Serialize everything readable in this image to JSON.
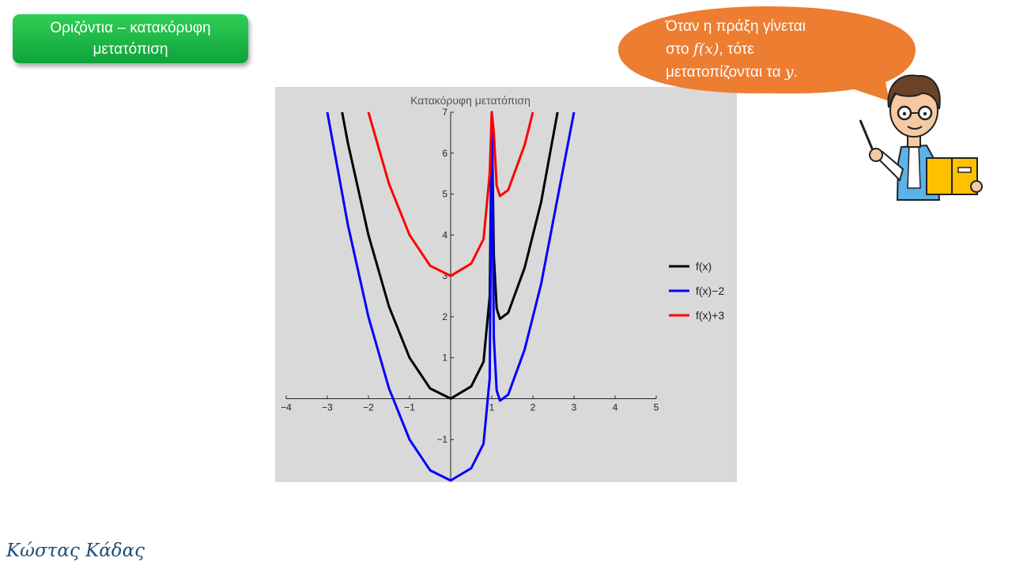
{
  "slide": {
    "title_line1": "Οριζόντια – κατακόρυφη",
    "title_line2": "μετατόπιση",
    "author": "Κώστας Κάδας"
  },
  "bubble": {
    "line1": "Όταν η πράξη γίνεται",
    "line2_pre": "στο ",
    "line2_math": "f(x)",
    "line2_post": ", τότε",
    "line3_pre": "μετατοπίζονται τα ",
    "line3_math": "y",
    "line3_post": "."
  },
  "colors": {
    "title_bg": "#1fba48",
    "bubble_bg": "#ed7d31",
    "panel_bg": "#d9d9d9"
  },
  "chart_data": {
    "type": "line",
    "title": "Κατακόρυφη μετατόπιση",
    "xlim": [
      -4,
      5
    ],
    "ylim": [
      -2,
      7
    ],
    "x_ticks": [
      -4,
      -3,
      -2,
      -1,
      1,
      2,
      3,
      4,
      5
    ],
    "y_ticks": [
      -1,
      1,
      2,
      3,
      4,
      5,
      6,
      7
    ],
    "legend_position": "right",
    "series": [
      {
        "name": "f(x)",
        "color": "#000000",
        "points": [
          [
            -2.64,
            7
          ],
          [
            -2.5,
            6.25
          ],
          [
            -2,
            4
          ],
          [
            -1.5,
            2.25
          ],
          [
            -1,
            1
          ],
          [
            -0.5,
            0.25
          ],
          [
            0,
            0
          ],
          [
            0.5,
            0.3
          ],
          [
            0.8,
            0.9
          ],
          [
            0.95,
            2.5
          ],
          [
            1,
            7
          ],
          [
            1.05,
            3.5
          ],
          [
            1.12,
            2.2
          ],
          [
            1.2,
            1.95
          ],
          [
            1.4,
            2.1
          ],
          [
            1.8,
            3.2
          ],
          [
            2.2,
            4.8
          ],
          [
            2.6,
            7
          ]
        ]
      },
      {
        "name": "f(x)−2",
        "color": "#0000ff",
        "points": [
          [
            -3,
            7
          ],
          [
            -2.5,
            4.25
          ],
          [
            -2,
            2
          ],
          [
            -1.5,
            0.25
          ],
          [
            -1,
            -1
          ],
          [
            -0.5,
            -1.75
          ],
          [
            0,
            -2
          ],
          [
            0.5,
            -1.7
          ],
          [
            0.8,
            -1.1
          ],
          [
            0.95,
            0.5
          ],
          [
            1,
            7
          ],
          [
            1.05,
            1.5
          ],
          [
            1.12,
            0.2
          ],
          [
            1.2,
            -0.05
          ],
          [
            1.4,
            0.1
          ],
          [
            1.8,
            1.2
          ],
          [
            2.2,
            2.8
          ],
          [
            2.6,
            4.9
          ],
          [
            3,
            7
          ]
        ]
      },
      {
        "name": "f(x)+3",
        "color": "#ff0000",
        "points": [
          [
            -2,
            7
          ],
          [
            -1.5,
            5.25
          ],
          [
            -1,
            4
          ],
          [
            -0.5,
            3.25
          ],
          [
            0,
            3
          ],
          [
            0.5,
            3.3
          ],
          [
            0.8,
            3.9
          ],
          [
            0.95,
            5.5
          ],
          [
            1,
            7
          ],
          [
            1.05,
            6.5
          ],
          [
            1.12,
            5.2
          ],
          [
            1.2,
            4.95
          ],
          [
            1.4,
            5.1
          ],
          [
            1.8,
            6.2
          ],
          [
            2,
            7
          ]
        ]
      }
    ]
  }
}
